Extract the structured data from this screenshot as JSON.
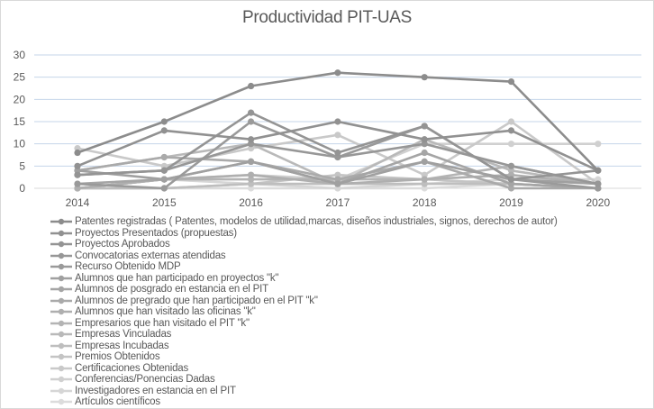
{
  "chart_data": {
    "type": "line",
    "title": "Productividad PIT-UAS",
    "xlabel": "",
    "ylabel": "",
    "categories": [
      "2014",
      "2015",
      "2016",
      "2017",
      "2018",
      "2019",
      "2020"
    ],
    "ylim": [
      0,
      30
    ],
    "yticks": [
      "0",
      "5",
      "10",
      "15",
      "20",
      "25",
      "30"
    ],
    "grid": true,
    "legend_position": "bottom",
    "series": [
      {
        "name": "Patentes registradas ( Patentes, modelos de utilidad,marcas, diseños industriales, signos, derechos de autor)",
        "color": "#8c8c8c",
        "values": [
          8,
          15,
          23,
          26,
          25,
          24,
          4
        ]
      },
      {
        "name": "Proyectos Presentados (propuestas)",
        "color": "#919191",
        "values": [
          5,
          13,
          11,
          15,
          11,
          13,
          4
        ]
      },
      {
        "name": "Proyectos Aprobados",
        "color": "#949494",
        "values": [
          3,
          4,
          17,
          8,
          14,
          2,
          4
        ]
      },
      {
        "name": "Convocatorias externas atendidas",
        "color": "#979797",
        "values": [
          3,
          4,
          10,
          7,
          10,
          5,
          1
        ]
      },
      {
        "name": "Recurso Obtenido MDP",
        "color": "#9a9a9a",
        "values": [
          1,
          0,
          15,
          7,
          14,
          2,
          0
        ]
      },
      {
        "name": "Alumnos que han participado en proyectos \"k\"",
        "color": "#a0a0a0",
        "values": [
          4,
          2,
          6,
          1,
          6,
          2,
          1
        ]
      },
      {
        "name": "Alumnos de posgrado en estancia en el PIT",
        "color": "#a5a5a5",
        "values": [
          1,
          2,
          6,
          1,
          8,
          1,
          0
        ]
      },
      {
        "name": "Alumnos de pregrado que han participado en el PIT \"k\"",
        "color": "#aaaaaa",
        "values": [
          4,
          7,
          6,
          2,
          6,
          0,
          0
        ]
      },
      {
        "name": "Alumnos que han visitado las oficinas \"k\"",
        "color": "#afafaf",
        "values": [
          0,
          2,
          3,
          1,
          2,
          3,
          1
        ]
      },
      {
        "name": "Empresarios que han visitado el PIT \"k\"",
        "color": "#b4b4b4",
        "values": [
          0,
          2,
          2,
          2,
          2,
          5,
          1
        ]
      },
      {
        "name": "Empresas Vinculadas",
        "color": "#b9b9b9",
        "values": [
          4,
          7,
          10,
          1,
          11,
          4,
          1
        ]
      },
      {
        "name": "Empresas Incubadas",
        "color": "#bebebe",
        "values": [
          0,
          0,
          1,
          1,
          1,
          1,
          0
        ]
      },
      {
        "name": "Premios Obtenidos",
        "color": "#c4c4c4",
        "values": [
          0,
          0,
          1,
          3,
          2,
          1,
          0
        ]
      },
      {
        "name": "Certificaciones Obtenidas",
        "color": "#c9c9c9",
        "values": [
          9,
          5,
          9,
          12,
          3,
          15,
          1
        ]
      },
      {
        "name": "Conferencias/Ponencias Dadas",
        "color": "#d0d0d0",
        "values": [
          0,
          2,
          3,
          2,
          10,
          10,
          10
        ]
      },
      {
        "name": "Investigadores en estancia en el PIT",
        "color": "#d6d6d6",
        "values": [
          0,
          2,
          1,
          0,
          1,
          2,
          2
        ]
      },
      {
        "name": "Artículos científicos",
        "color": "#dcdcdc",
        "values": [
          0,
          0,
          0,
          0,
          0,
          1,
          0
        ]
      }
    ],
    "gridline_color": "#c5d5ea",
    "axis_color": "#d9d9d9",
    "text_color": "#595959"
  }
}
